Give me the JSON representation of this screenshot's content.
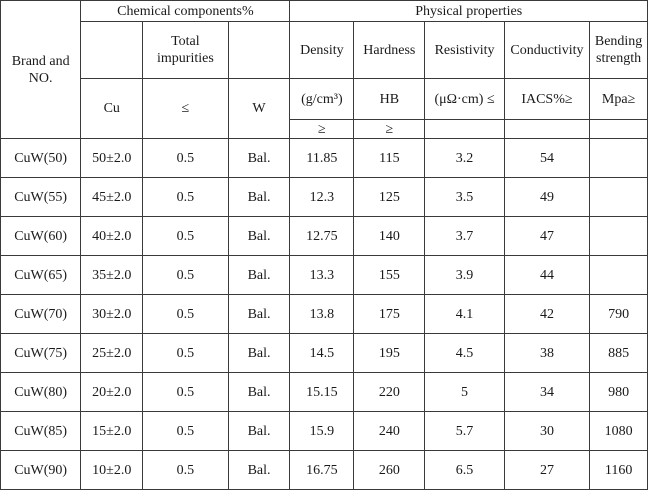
{
  "header": {
    "brand": "Brand and NO.",
    "chemical": "Chemical components%",
    "physical": "Physical properties",
    "total_impurities": "Total impurities",
    "density": "Density",
    "hardness": "Hardness",
    "resistivity": "Resistivity",
    "conductivity": "Conductivity",
    "bending": "Bending strength",
    "cu": "Cu",
    "impurity_sign": "≤",
    "w": "W",
    "density_unit": "(g/cm³)",
    "hardness_unit": "HB",
    "resistivity_unit": "(μΩ·cm) ≤",
    "conductivity_unit": "IACS%≥",
    "bending_unit": "Mpa≥",
    "density_sign": "≥",
    "hardness_sign": "≥"
  },
  "rows": [
    {
      "brand": "CuW(50)",
      "cu": "50±2.0",
      "imp": "0.5",
      "w": "Bal.",
      "density": "11.85",
      "hardness": "115",
      "resistivity": "3.2",
      "conductivity": "54",
      "bending": ""
    },
    {
      "brand": "CuW(55)",
      "cu": "45±2.0",
      "imp": "0.5",
      "w": "Bal.",
      "density": "12.3",
      "hardness": "125",
      "resistivity": "3.5",
      "conductivity": "49",
      "bending": ""
    },
    {
      "brand": "CuW(60)",
      "cu": "40±2.0",
      "imp": "0.5",
      "w": "Bal.",
      "density": "12.75",
      "hardness": "140",
      "resistivity": "3.7",
      "conductivity": "47",
      "bending": ""
    },
    {
      "brand": "CuW(65)",
      "cu": "35±2.0",
      "imp": "0.5",
      "w": "Bal.",
      "density": "13.3",
      "hardness": "155",
      "resistivity": "3.9",
      "conductivity": "44",
      "bending": ""
    },
    {
      "brand": "CuW(70)",
      "cu": "30±2.0",
      "imp": "0.5",
      "w": "Bal.",
      "density": "13.8",
      "hardness": "175",
      "resistivity": "4.1",
      "conductivity": "42",
      "bending": "790"
    },
    {
      "brand": "CuW(75)",
      "cu": "25±2.0",
      "imp": "0.5",
      "w": "Bal.",
      "density": "14.5",
      "hardness": "195",
      "resistivity": "4.5",
      "conductivity": "38",
      "bending": "885"
    },
    {
      "brand": "CuW(80)",
      "cu": "20±2.0",
      "imp": "0.5",
      "w": "Bal.",
      "density": "15.15",
      "hardness": "220",
      "resistivity": "5",
      "conductivity": "34",
      "bending": "980"
    },
    {
      "brand": "CuW(85)",
      "cu": "15±2.0",
      "imp": "0.5",
      "w": "Bal.",
      "density": "15.9",
      "hardness": "240",
      "resistivity": "5.7",
      "conductivity": "30",
      "bending": "1080"
    },
    {
      "brand": "CuW(90)",
      "cu": "10±2.0",
      "imp": "0.5",
      "w": "Bal.",
      "density": "16.75",
      "hardness": "260",
      "resistivity": "6.5",
      "conductivity": "27",
      "bending": "1160"
    }
  ]
}
